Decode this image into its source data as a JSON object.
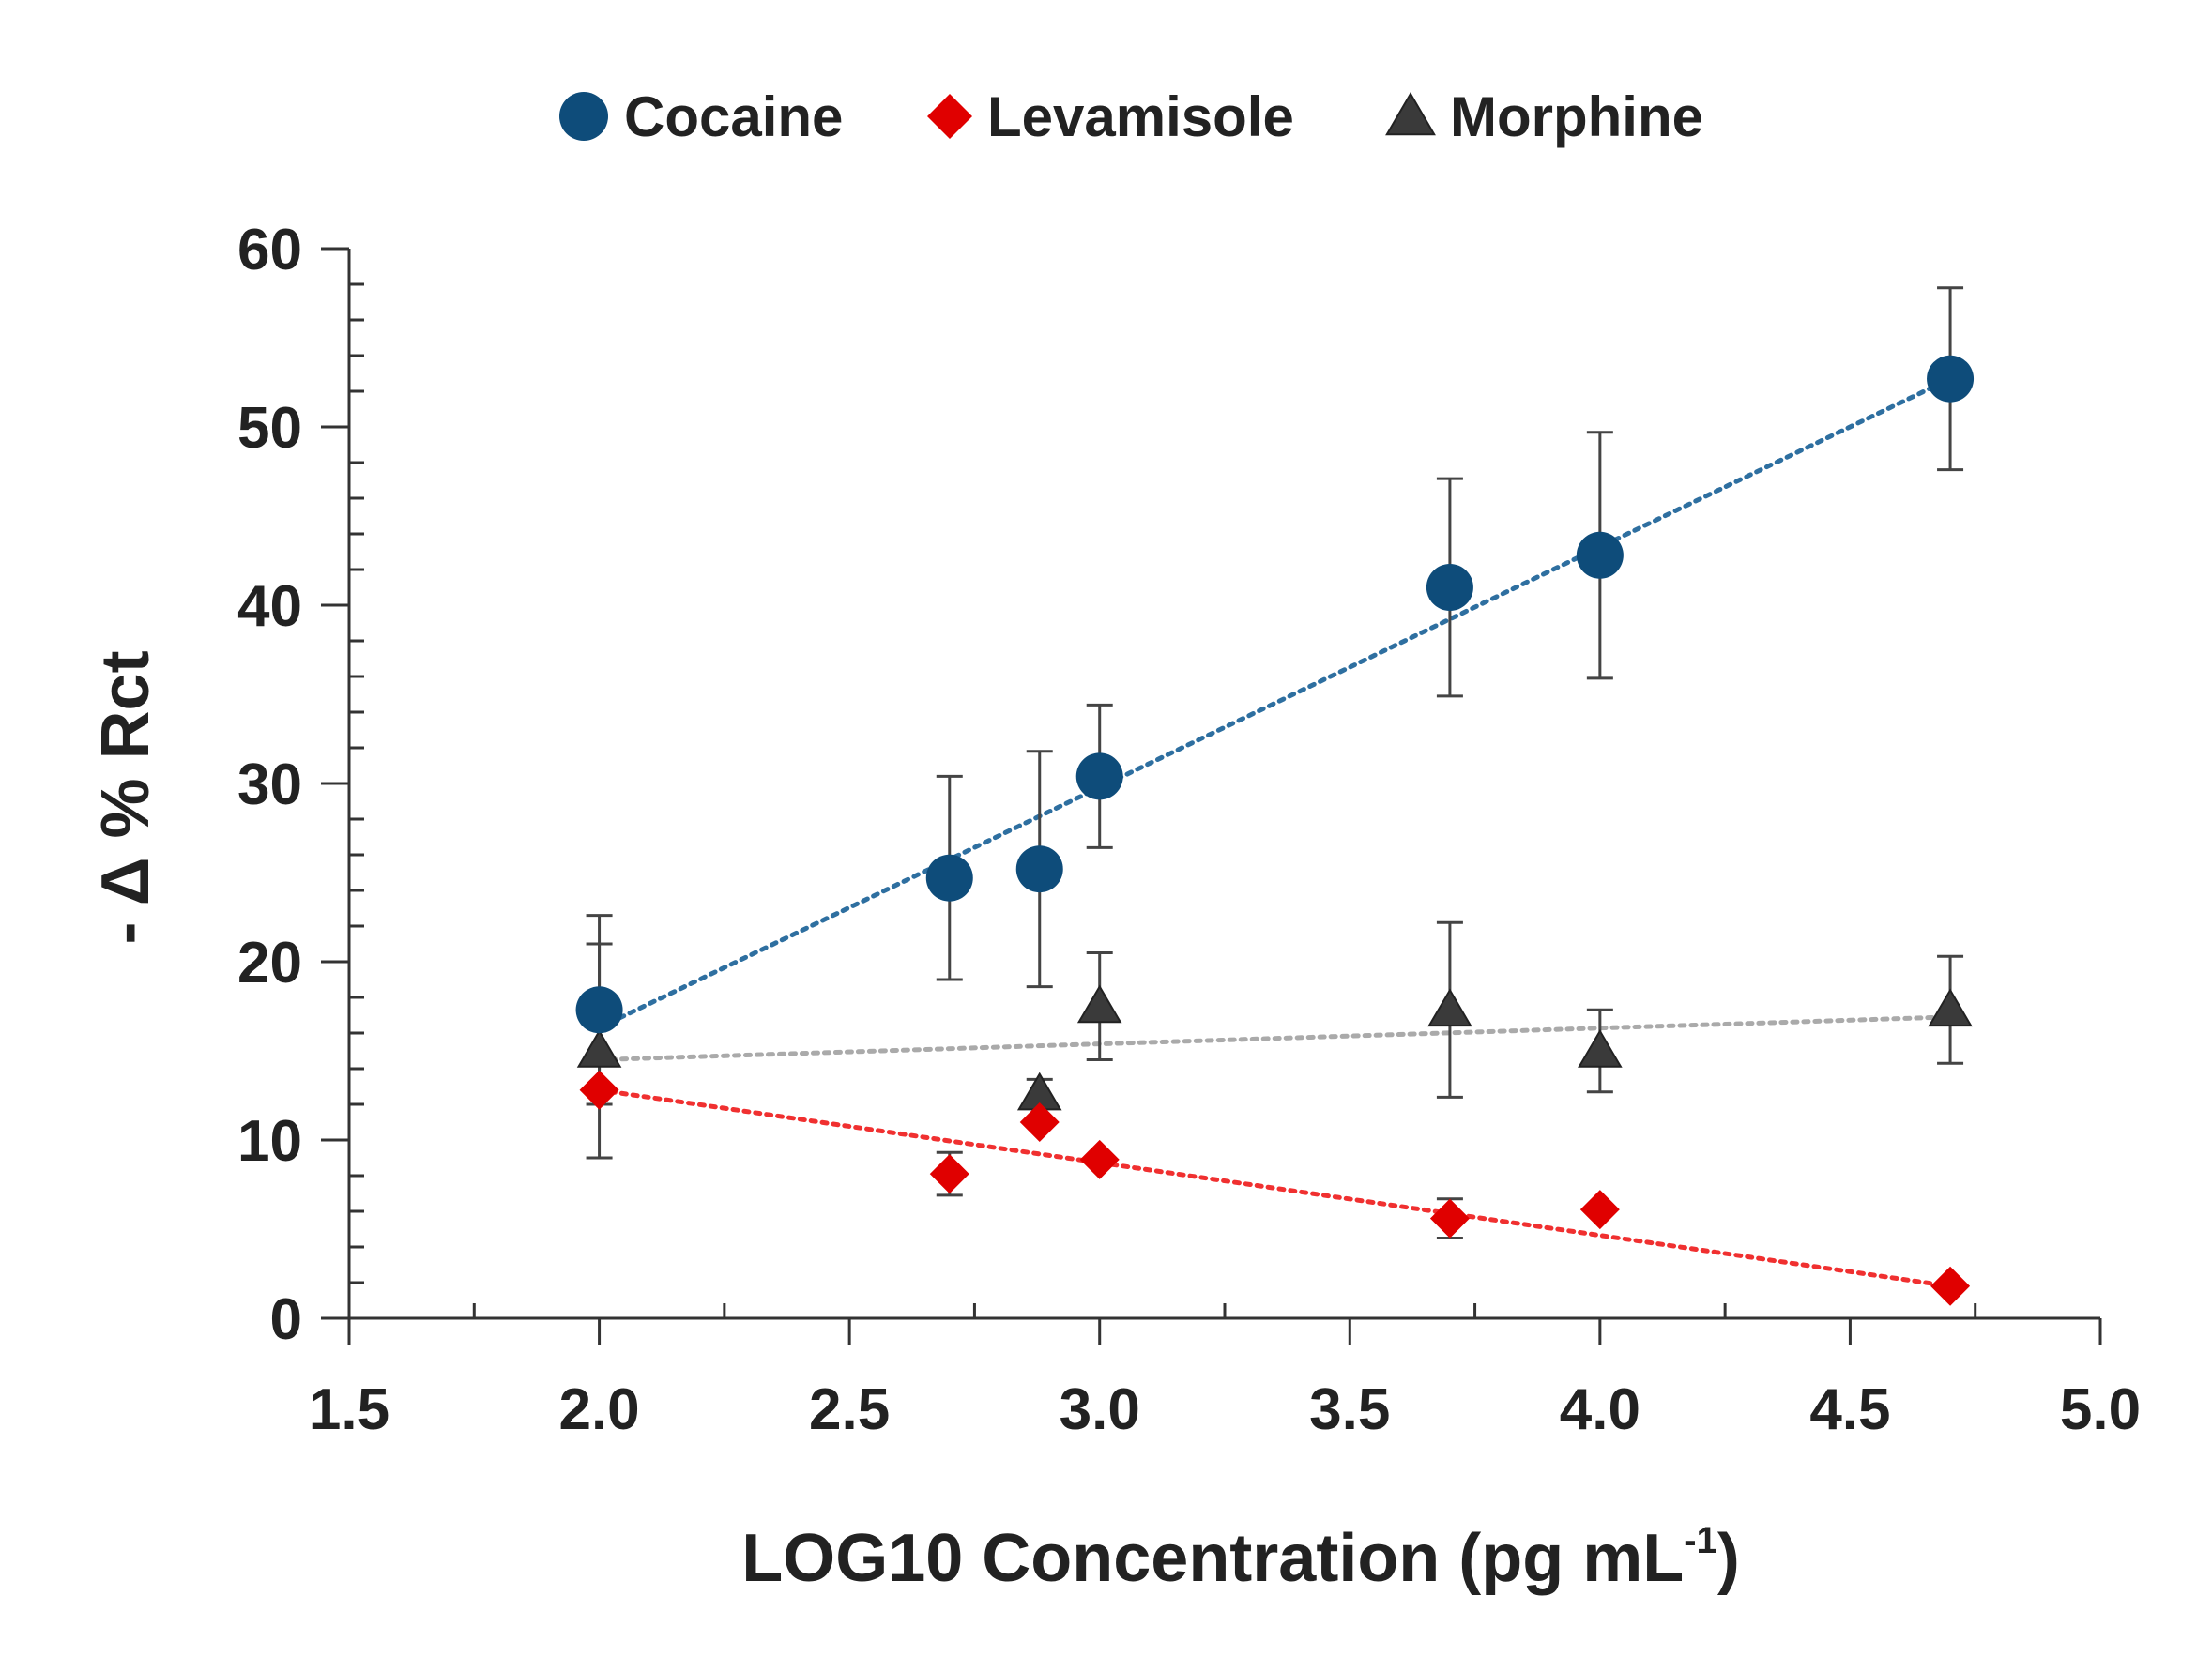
{
  "chart_data": {
    "type": "scatter",
    "title": "",
    "xlabel": "LOG10 Concentration (pg mL",
    "xlabel_sup": "-1",
    "xlabel_close": ")",
    "ylabel": "- Δ % Rct",
    "xlim": [
      1.5,
      5.0
    ],
    "ylim": [
      0,
      60
    ],
    "x_ticks": [
      "1.5",
      "2.0",
      "2.5",
      "3.0",
      "3.5",
      "4.0",
      "4.5",
      "5.0"
    ],
    "y_ticks": [
      "0",
      "10",
      "20",
      "30",
      "40",
      "50",
      "60"
    ],
    "legend_position": "top-center",
    "grid": false,
    "series": [
      {
        "name": "Cocaine",
        "marker": "circle",
        "color": "#0E4C7A",
        "trend_color": "#2E6FA0",
        "x": [
          2.0,
          2.7,
          2.88,
          3.0,
          3.7,
          4.0,
          4.7
        ],
        "y": [
          17.3,
          24.7,
          25.2,
          30.4,
          41.0,
          42.8,
          52.7
        ],
        "err": [
          5.3,
          5.7,
          6.6,
          4.0,
          6.1,
          6.9,
          5.1
        ],
        "trendline": [
          [
            2.0,
            16.3
          ],
          [
            4.7,
            52.7
          ]
        ]
      },
      {
        "name": "Levamisole",
        "marker": "diamond",
        "color": "#E00000",
        "trend_color": "#F03030",
        "x": [
          2.0,
          2.7,
          2.88,
          3.0,
          3.7,
          4.0,
          4.7
        ],
        "y": [
          12.8,
          8.1,
          11.0,
          8.9,
          5.6,
          6.1,
          1.8
        ],
        "err": [
          0,
          1.2,
          0,
          0,
          1.1,
          0,
          0
        ],
        "trendline": [
          [
            2.0,
            12.8
          ],
          [
            4.7,
            1.8
          ]
        ]
      },
      {
        "name": "Morphine",
        "marker": "triangle",
        "color": "#3A3A3A",
        "trend_color": "#AAAAAA",
        "x": [
          2.0,
          2.88,
          3.0,
          3.7,
          4.0,
          4.7
        ],
        "y": [
          15.0,
          12.6,
          17.5,
          17.3,
          15.0,
          17.3
        ],
        "err": [
          6.0,
          0.8,
          3.0,
          4.9,
          2.3,
          3.0
        ],
        "trendline": [
          [
            2.0,
            14.5
          ],
          [
            4.7,
            16.9
          ]
        ]
      }
    ]
  }
}
